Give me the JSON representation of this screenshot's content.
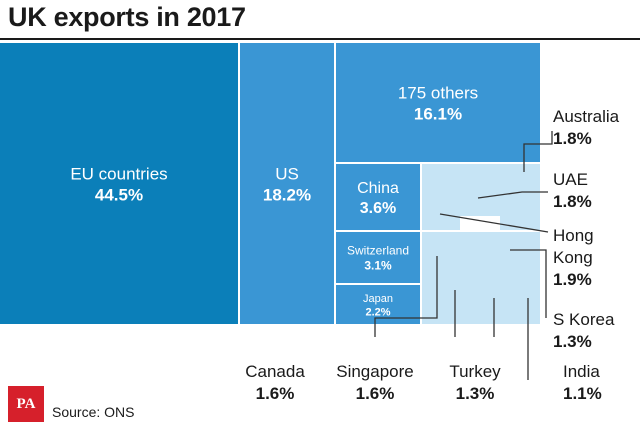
{
  "title": "UK exports in 2017",
  "source": "Source: ONS",
  "logo_text": "PA",
  "colors": {
    "eu": "#0b7fb9",
    "mid": "#3a96d4",
    "light_mid": "#74b9e6",
    "light": "#c6e4f5",
    "label_dark": "#1a1a1a",
    "label_light": "#ffffff",
    "leader": "#333333",
    "logo": "#d6202b"
  },
  "chart_data": {
    "type": "treemap",
    "title": "UK exports in 2017",
    "unit": "% of total exports",
    "items": [
      {
        "name": "EU countries",
        "value": 44.5,
        "label": "44.5%"
      },
      {
        "name": "US",
        "value": 18.2,
        "label": "18.2%"
      },
      {
        "name": "175 others",
        "value": 16.1,
        "label": "16.1%"
      },
      {
        "name": "China",
        "value": 3.6,
        "label": "3.6%"
      },
      {
        "name": "Switzerland",
        "value": 3.1,
        "label": "3.1%"
      },
      {
        "name": "Japan",
        "value": 2.2,
        "label": "2.2%"
      },
      {
        "name": "Australia",
        "value": 1.8,
        "label": "1.8%"
      },
      {
        "name": "UAE",
        "value": 1.8,
        "label": "1.8%"
      },
      {
        "name": "Hong Kong",
        "value": 1.9,
        "label": "1.9%"
      },
      {
        "name": "S Korea",
        "value": 1.3,
        "label": "1.3%"
      },
      {
        "name": "Canada",
        "value": 1.6,
        "label": "1.6%"
      },
      {
        "name": "Singapore",
        "value": 1.6,
        "label": "1.6%"
      },
      {
        "name": "Turkey",
        "value": 1.3,
        "label": "1.3%"
      },
      {
        "name": "India",
        "value": 1.1,
        "label": "1.1%"
      }
    ]
  }
}
